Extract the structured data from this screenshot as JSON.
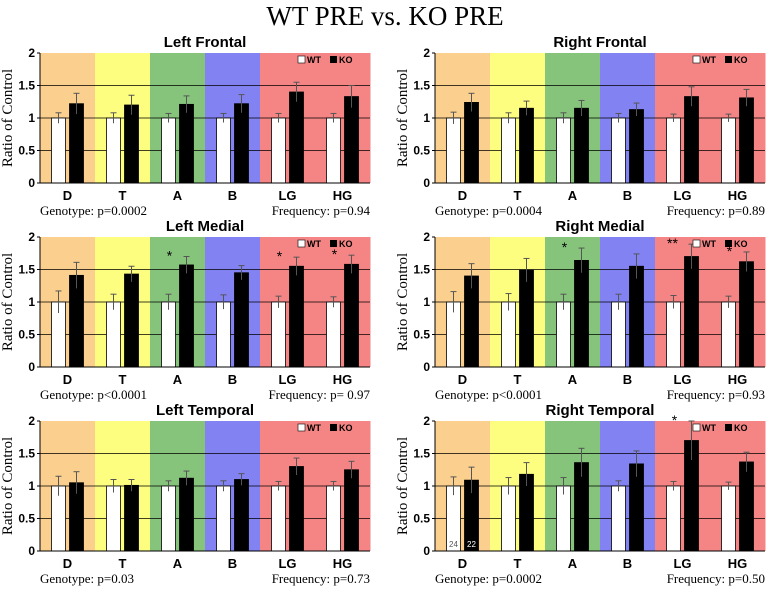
{
  "figure_title": "WT PRE vs. KO PRE",
  "colors": {
    "bands": [
      "#fbd08f",
      "#fdfd7f",
      "#86c47c",
      "#8282f2",
      "#f58585",
      "#f58585"
    ],
    "wt": "#ffffff",
    "ko": "#000000",
    "axis": "#000000"
  },
  "legend": {
    "wt": "WT",
    "ko": "KO"
  },
  "chart_data": [
    {
      "type": "bar",
      "title": "Left Frontal",
      "ylabel": "Ratio of Control",
      "ylim": [
        0,
        2
      ],
      "yticks": [
        "0",
        "0.5",
        "1",
        "1.5",
        "2"
      ],
      "categories": [
        "D",
        "T",
        "A",
        "B",
        "LG",
        "HG"
      ],
      "series": [
        {
          "name": "WT",
          "values": [
            1,
            1,
            1,
            1,
            1,
            1
          ],
          "errors": [
            0.08,
            0.08,
            0.07,
            0.07,
            0.07,
            0.07
          ]
        },
        {
          "name": "KO",
          "values": [
            1.22,
            1.2,
            1.21,
            1.22,
            1.4,
            1.33
          ],
          "errors": [
            0.16,
            0.15,
            0.13,
            0.14,
            0.15,
            0.17
          ]
        }
      ],
      "significance": [
        "",
        "",
        "",
        "",
        "",
        ""
      ],
      "n_labels": null,
      "genotype_stat": "Genotype: p=0.0002",
      "frequency_stat": "Frequency: p=0.94"
    },
    {
      "type": "bar",
      "title": "Right Frontal",
      "ylabel": "Ratio of Control",
      "ylim": [
        0,
        2
      ],
      "yticks": [
        "0",
        "0.5",
        "1",
        "1.5",
        "2"
      ],
      "categories": [
        "D",
        "T",
        "A",
        "B",
        "LG",
        "HG"
      ],
      "series": [
        {
          "name": "WT",
          "values": [
            1,
            1,
            1,
            1,
            1,
            1
          ],
          "errors": [
            0.09,
            0.08,
            0.08,
            0.07,
            0.06,
            0.06
          ]
        },
        {
          "name": "KO",
          "values": [
            1.24,
            1.15,
            1.15,
            1.13,
            1.33,
            1.31
          ],
          "errors": [
            0.14,
            0.11,
            0.12,
            0.1,
            0.15,
            0.13
          ]
        }
      ],
      "significance": [
        "",
        "",
        "",
        "",
        "",
        ""
      ],
      "n_labels": null,
      "genotype_stat": "Genotype: p=0.0004",
      "frequency_stat": "Frequency: p=0.89"
    },
    {
      "type": "bar",
      "title": "Left Medial",
      "ylabel": "Ratio of Control",
      "ylim": [
        0,
        2
      ],
      "yticks": [
        "0",
        "0.5",
        "1",
        "1.5",
        "2"
      ],
      "categories": [
        "D",
        "T",
        "A",
        "B",
        "LG",
        "HG"
      ],
      "series": [
        {
          "name": "WT",
          "values": [
            1,
            1,
            1,
            1,
            1,
            1
          ],
          "errors": [
            0.17,
            0.12,
            0.12,
            0.11,
            0.09,
            0.08
          ]
        },
        {
          "name": "KO",
          "values": [
            1.41,
            1.43,
            1.57,
            1.45,
            1.55,
            1.58
          ],
          "errors": [
            0.2,
            0.12,
            0.13,
            0.11,
            0.14,
            0.14
          ]
        }
      ],
      "significance": [
        "",
        "",
        "*",
        "",
        "*",
        "*"
      ],
      "n_labels": null,
      "genotype_stat": "Genotype: p<0.0001",
      "frequency_stat": "Frequency: p= 0.97"
    },
    {
      "type": "bar",
      "title": "Right Medial",
      "ylabel": "Ratio of Control",
      "ylim": [
        0,
        2
      ],
      "yticks": [
        "0",
        "0.5",
        "1",
        "1.5",
        "2"
      ],
      "categories": [
        "D",
        "T",
        "A",
        "B",
        "LG",
        "HG"
      ],
      "series": [
        {
          "name": "WT",
          "values": [
            1,
            1,
            1,
            1,
            1,
            1
          ],
          "errors": [
            0.16,
            0.13,
            0.12,
            0.12,
            0.1,
            0.09
          ]
        },
        {
          "name": "KO",
          "values": [
            1.4,
            1.49,
            1.64,
            1.55,
            1.7,
            1.62
          ],
          "errors": [
            0.19,
            0.18,
            0.19,
            0.19,
            0.19,
            0.15
          ]
        }
      ],
      "significance": [
        "",
        "",
        "*",
        "",
        "**",
        "*"
      ],
      "n_labels": null,
      "genotype_stat": "Genotype: p<0.0001",
      "frequency_stat": "Frequency: p=0.93"
    },
    {
      "type": "bar",
      "title": "Left Temporal",
      "ylabel": "Ratio of Control",
      "ylim": [
        0,
        2
      ],
      "yticks": [
        "0",
        "0.5",
        "1",
        "1.5",
        "2"
      ],
      "categories": [
        "D",
        "T",
        "A",
        "B",
        "LG",
        "HG"
      ],
      "series": [
        {
          "name": "WT",
          "values": [
            1,
            1,
            1,
            1,
            1,
            1
          ],
          "errors": [
            0.15,
            0.1,
            0.08,
            0.08,
            0.07,
            0.07
          ]
        },
        {
          "name": "KO",
          "values": [
            1.05,
            1.01,
            1.12,
            1.1,
            1.3,
            1.25
          ],
          "errors": [
            0.17,
            0.09,
            0.11,
            0.09,
            0.13,
            0.13
          ]
        }
      ],
      "significance": [
        "",
        "",
        "",
        "",
        "",
        ""
      ],
      "n_labels": null,
      "genotype_stat": "Genotype: p=0.03",
      "frequency_stat": "Frequency: p=0.73"
    },
    {
      "type": "bar",
      "title": "Right Temporal",
      "ylabel": "Ratio of Control",
      "ylim": [
        0,
        2
      ],
      "yticks": [
        "0",
        "0.5",
        "1",
        "1.5",
        "2"
      ],
      "categories": [
        "D",
        "T",
        "A",
        "B",
        "LG",
        "HG"
      ],
      "series": [
        {
          "name": "WT",
          "values": [
            1,
            1,
            1,
            1,
            1,
            1
          ],
          "errors": [
            0.14,
            0.13,
            0.13,
            0.08,
            0.07,
            0.06
          ]
        },
        {
          "name": "KO",
          "values": [
            1.09,
            1.18,
            1.36,
            1.34,
            1.7,
            1.37
          ],
          "errors": [
            0.2,
            0.18,
            0.22,
            0.2,
            0.3,
            0.15
          ]
        }
      ],
      "significance": [
        "",
        "",
        "",
        "",
        "*",
        ""
      ],
      "n_labels": [
        "24",
        "22"
      ],
      "genotype_stat": "Genotype: p=0.0002",
      "frequency_stat": "Frequency: p=0.50"
    }
  ]
}
